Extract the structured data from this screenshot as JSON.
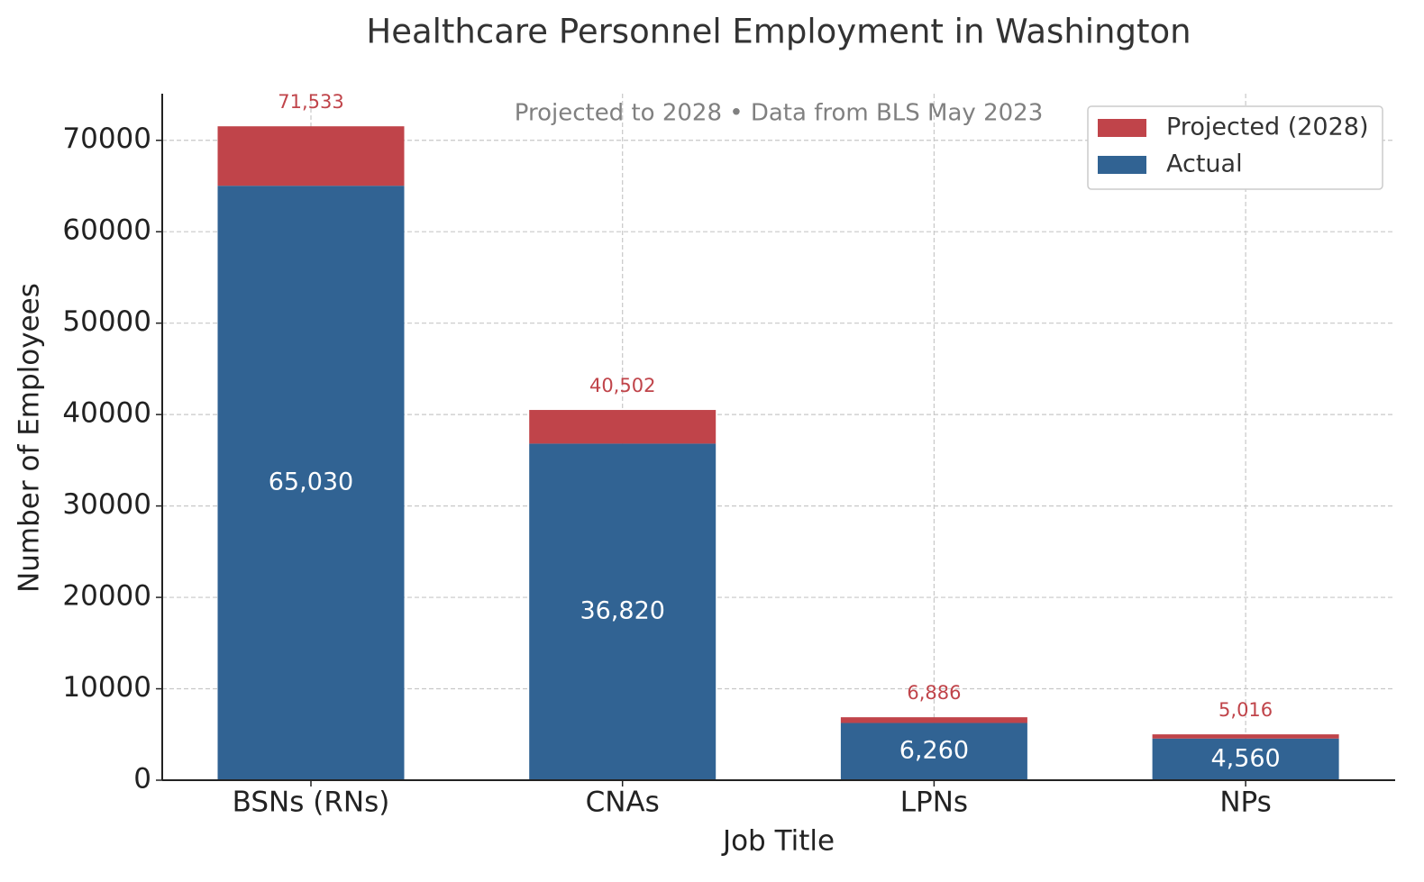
{
  "chart_data": {
    "type": "stacked_bar",
    "title": "Healthcare Personnel Employment in Washington",
    "subtitle": "Projected to 2028 • Data from BLS May 2023",
    "x_label": "Job Title",
    "y_label": "Number of Employees",
    "categories": [
      "BSNs (RNs)",
      "CNAs",
      "LPNs",
      "NPs"
    ],
    "series": [
      {
        "name": "Actual",
        "color": "#316393",
        "values": [
          65030,
          36820,
          6260,
          4560
        ],
        "value_labels": [
          "65,030",
          "36,820",
          "6,260",
          "4,560"
        ]
      },
      {
        "name": "Projected (2028)",
        "color": "#c0444a",
        "values": [
          6503,
          3682,
          626,
          456
        ]
      }
    ],
    "total_labels": [
      "71,533",
      "40,502",
      "6,886",
      "5,016"
    ],
    "ylim": [
      0,
      75100
    ],
    "yticks": [
      0,
      10000,
      20000,
      30000,
      40000,
      50000,
      60000,
      70000
    ],
    "grid": true,
    "legend": "upper right"
  }
}
